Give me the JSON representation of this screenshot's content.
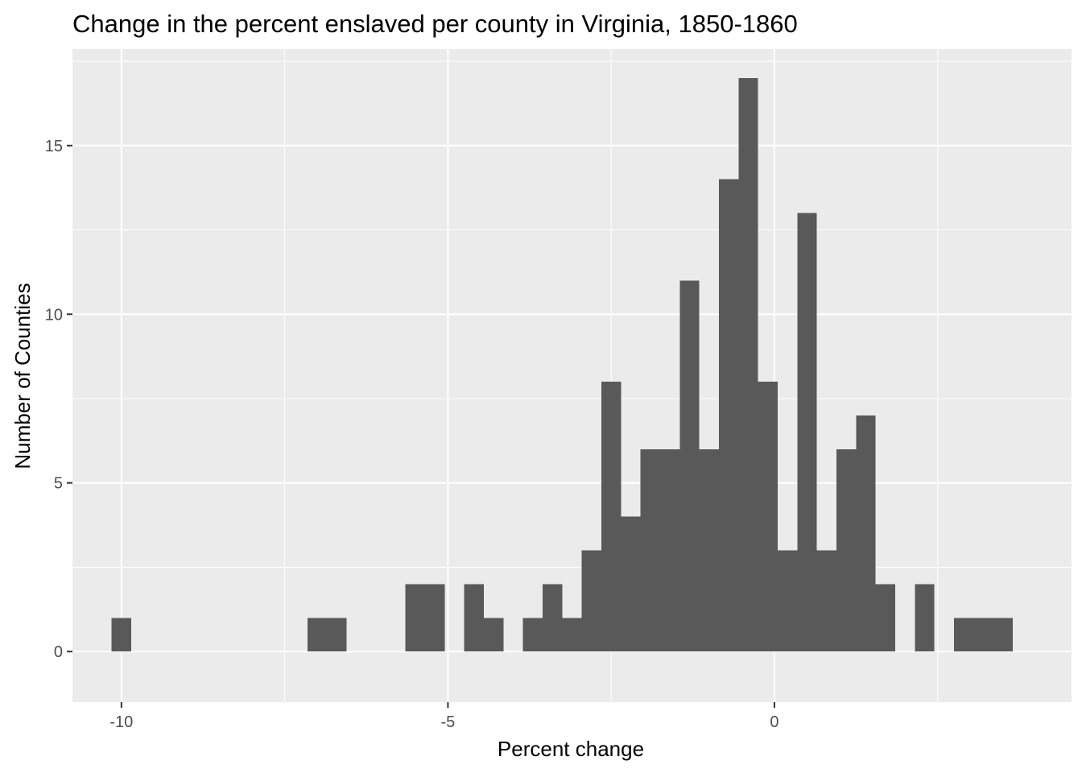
{
  "colors": {
    "panel_background": "#ebebeb",
    "grid_major": "#ffffff",
    "bar_fill": "#595959",
    "tick_mark": "#333333",
    "tick_label": "#4d4d4d"
  },
  "chart_data": {
    "type": "bar",
    "title": "Change in the percent enslaved per county in Virginia, 1850-1860",
    "xlabel": "Percent change",
    "ylabel": "Number of Counties",
    "bin_width": 0.3,
    "bin_start": -10.15,
    "counts": [
      1,
      0,
      0,
      0,
      0,
      0,
      0,
      0,
      0,
      0,
      1,
      1,
      0,
      0,
      0,
      2,
      2,
      0,
      2,
      1,
      0,
      1,
      2,
      1,
      3,
      8,
      4,
      6,
      6,
      11,
      6,
      14,
      17,
      8,
      3,
      13,
      3,
      6,
      7,
      2,
      0,
      2,
      0,
      1,
      1,
      1
    ],
    "xlim": [
      -10.75,
      4.55
    ],
    "ylim": [
      -1.5,
      17.86
    ],
    "x_ticks": [
      -10,
      -5,
      0
    ],
    "x_tick_labels": [
      "-10",
      "-5",
      "0"
    ],
    "y_ticks": [
      0,
      5,
      10,
      15
    ],
    "y_tick_labels": [
      "0",
      "5",
      "10",
      "15"
    ],
    "grid": true
  }
}
